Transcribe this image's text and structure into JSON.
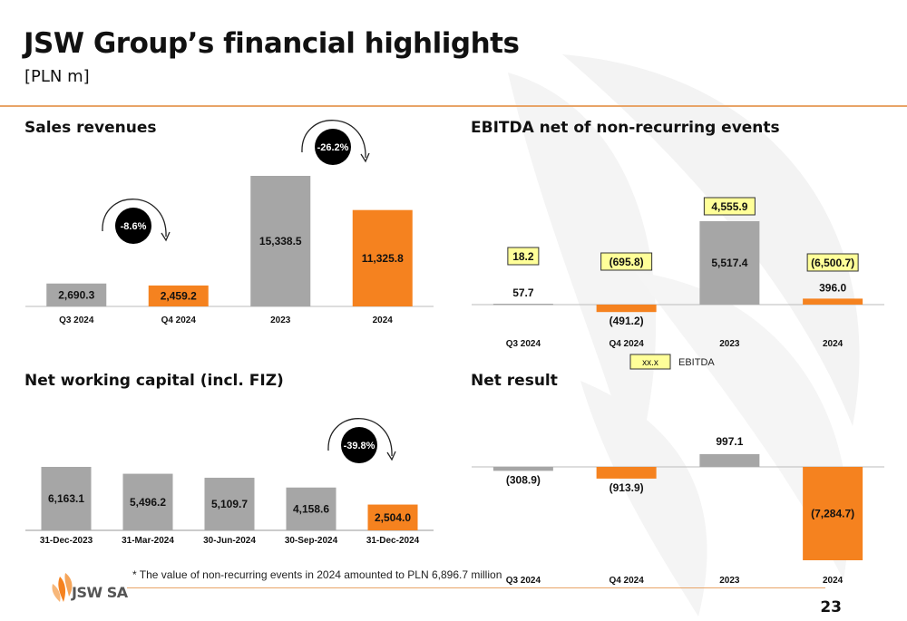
{
  "header": {
    "title": "JSW Group’s financial highlights",
    "subtitle": "[PLN m]"
  },
  "colors": {
    "gray": "#a6a6a6",
    "orange": "#f5821f",
    "yellow": "#ffff99",
    "black": "#000000"
  },
  "chart_data": [
    {
      "id": "sales",
      "type": "bar",
      "title": "Sales revenues",
      "categories": [
        "Q3 2024",
        "Q4 2024",
        "2023",
        "2024"
      ],
      "values": [
        2690.3,
        2459.2,
        15338.5,
        11325.8
      ],
      "value_labels": [
        "2,690.3",
        "2,459.2",
        "15,338.5",
        "11,325.8"
      ],
      "bar_colors": [
        "gray",
        "orange",
        "gray",
        "orange"
      ],
      "changes": [
        {
          "label": "-8.6%",
          "from": 0,
          "to": 1
        },
        {
          "label": "-26.2%",
          "from": 2,
          "to": 3
        }
      ]
    },
    {
      "id": "ebitda",
      "type": "bar",
      "title": "EBITDA net of non-recurring events",
      "categories": [
        "Q3 2024",
        "Q4 2024",
        "2023",
        "2024"
      ],
      "values": [
        57.7,
        -491.2,
        5517.4,
        396.0
      ],
      "value_labels": [
        "57.7",
        "(491.2)",
        "5,517.4",
        "396.0"
      ],
      "bar_colors": [
        "gray",
        "orange",
        "gray",
        "orange"
      ],
      "reported_ebitda": [
        {
          "label": "18.2"
        },
        {
          "label": "(695.8)"
        },
        {
          "label": "4,555.9"
        },
        {
          "label": "(6,500.7)"
        }
      ],
      "legend": {
        "swatch_label": "xx.x",
        "label": "EBITDA"
      }
    },
    {
      "id": "nwc",
      "type": "bar",
      "title": "Net working capital (incl. FIZ)",
      "categories": [
        "31-Dec-2023",
        "31-Mar-2024",
        "30-Jun-2024",
        "30-Sep-2024",
        "31-Dec-2024"
      ],
      "values": [
        6163.1,
        5496.2,
        5109.7,
        4158.6,
        2504.0
      ],
      "value_labels": [
        "6,163.1",
        "5,496.2",
        "5,109.7",
        "4,158.6",
        "2,504.0"
      ],
      "bar_colors": [
        "gray",
        "gray",
        "gray",
        "gray",
        "orange"
      ],
      "changes": [
        {
          "label": "-39.8%",
          "from": 3,
          "to": 4
        }
      ]
    },
    {
      "id": "netresult",
      "type": "bar",
      "title": "Net result",
      "categories": [
        "Q3 2024",
        "Q4 2024",
        "2023",
        "2024"
      ],
      "values": [
        -308.9,
        -913.9,
        997.1,
        -7284.7
      ],
      "value_labels": [
        "(308.9)",
        "(913.9)",
        "997.1",
        "(7,284.7)"
      ],
      "bar_colors": [
        "gray",
        "orange",
        "gray",
        "orange"
      ]
    }
  ],
  "footer": {
    "note": "* The value of non-recurring events in 2024 amounted to PLN 6,896.7 million",
    "logo_text": "JSW SA",
    "page_number": "23"
  }
}
